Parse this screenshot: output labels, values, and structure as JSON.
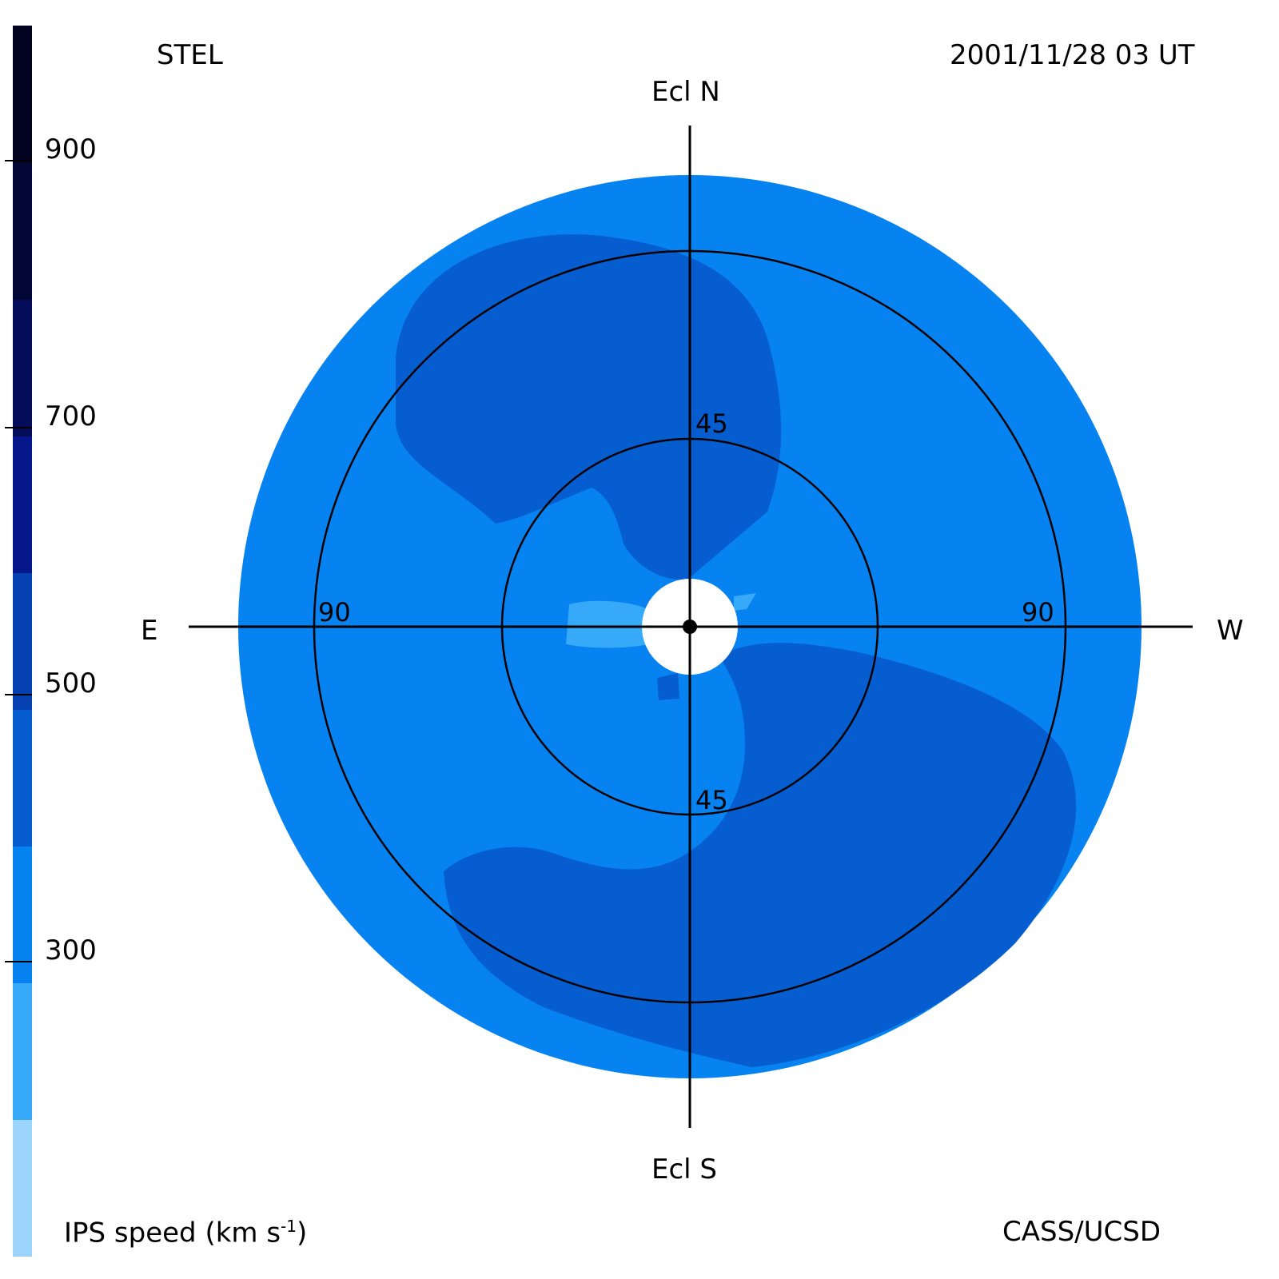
{
  "header": {
    "observatory": "STEL",
    "datetime": "2001/11/28 03 UT"
  },
  "footer": {
    "colorbar_label": "IPS speed (km s",
    "colorbar_label_sup": "-1",
    "colorbar_label_end": ")",
    "credit": "CASS/UCSD"
  },
  "compass": {
    "north": "Ecl N",
    "south": "Ecl S",
    "east": "E",
    "west": "W"
  },
  "rings": {
    "inner_n": "45",
    "inner_s": "45",
    "outer_e": "90",
    "outer_w": "90"
  },
  "colorbar": {
    "ticks": [
      "900",
      "700",
      "500",
      "300"
    ],
    "tick_values": [
      900,
      700,
      500,
      300
    ],
    "range": [
      100,
      1000
    ],
    "segments": [
      {
        "from": 100,
        "to": 200,
        "color": "#9dd4fb"
      },
      {
        "from": 200,
        "to": 300,
        "color": "#36a9f8"
      },
      {
        "from": 300,
        "to": 400,
        "color": "#0683f0"
      },
      {
        "from": 400,
        "to": 500,
        "color": "#055dd0"
      },
      {
        "from": 500,
        "to": 600,
        "color": "#0540b0"
      },
      {
        "from": 600,
        "to": 700,
        "color": "#04168a"
      },
      {
        "from": 700,
        "to": 800,
        "color": "#030d5a"
      },
      {
        "from": 800,
        "to": 900,
        "color": "#020735"
      },
      {
        "from": 900,
        "to": 1000,
        "color": "#010320"
      }
    ]
  },
  "map_colors": {
    "base": "#0683f0",
    "fast": "#055dd0",
    "slow": "#36a9f8",
    "occulted": "#ffffff",
    "lines": "#000000"
  }
}
